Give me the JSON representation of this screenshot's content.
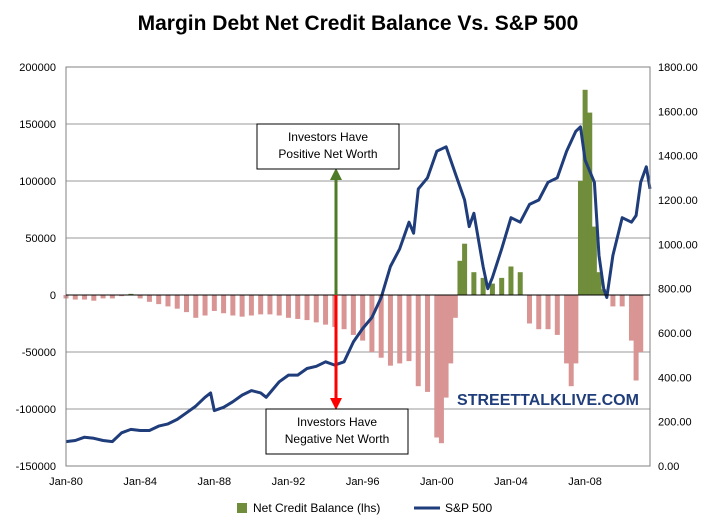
{
  "title": "Margin Debt Net Credit Balance Vs. S&P 500",
  "watermark": "STREETTALKLIVE.COM",
  "annotations": {
    "positive": [
      "Investors Have",
      "Positive Net Worth"
    ],
    "negative": [
      "Investors Have",
      "Negative Net Worth"
    ]
  },
  "colors": {
    "bars_positive": "#6f8d3a",
    "bars_negative": "#d99594",
    "sp500_line": "#1f3d7a",
    "arrow_up": "#4f7a28",
    "arrow_down": "#ff0000",
    "grid": "#999999"
  },
  "chart_data": {
    "type": "bar",
    "title": "Margin Debt Net Credit Balance Vs. S&P 500",
    "x_tick_labels": [
      "Jan-80",
      "Jan-84",
      "Jan-88",
      "Jan-92",
      "Jan-96",
      "Jan-00",
      "Jan-04",
      "Jan-08"
    ],
    "x_range": [
      1980.0,
      2011.5
    ],
    "y_left": {
      "label": "",
      "ticks": [
        "200000",
        "150000",
        "100000",
        "50000",
        "0",
        "-50000",
        "-100000",
        "-150000"
      ],
      "lim": [
        -150000,
        200000
      ]
    },
    "y_right": {
      "label": "",
      "ticks": [
        "1800.00",
        "1600.00",
        "1400.00",
        "1200.00",
        "1000.00",
        "800.00",
        "600.00",
        "400.00",
        "200.00",
        "0.00"
      ],
      "lim": [
        0,
        1800
      ]
    },
    "grid": true,
    "legend": {
      "placement": "bottom",
      "entries": [
        "Net Credit Balance (lhs)",
        "S&P 500"
      ]
    },
    "series": [
      {
        "name": "Net Credit Balance (lhs)",
        "kind": "bar",
        "axis": "left",
        "x": [
          1980.0,
          1980.5,
          1981.0,
          1981.5,
          1982.0,
          1982.5,
          1983.0,
          1983.5,
          1984.0,
          1984.5,
          1985.0,
          1985.5,
          1986.0,
          1986.5,
          1987.0,
          1987.5,
          1988.0,
          1988.5,
          1989.0,
          1989.5,
          1990.0,
          1990.5,
          1991.0,
          1991.5,
          1992.0,
          1992.5,
          1993.0,
          1993.5,
          1994.0,
          1994.5,
          1995.0,
          1995.5,
          1996.0,
          1996.5,
          1997.0,
          1997.5,
          1998.0,
          1998.5,
          1999.0,
          1999.5,
          2000.0,
          2000.25,
          2000.5,
          2000.75,
          2001.0,
          2001.25,
          2001.5,
          2002.0,
          2002.5,
          2003.0,
          2003.5,
          2004.0,
          2004.5,
          2005.0,
          2005.5,
          2006.0,
          2006.5,
          2007.0,
          2007.25,
          2007.5,
          2007.75,
          2008.0,
          2008.25,
          2008.5,
          2008.75,
          2009.0,
          2009.5,
          2010.0,
          2010.5,
          2010.75,
          2011.0
        ],
        "values": [
          -3000,
          -4000,
          -4000,
          -5000,
          -3000,
          -3000,
          -1000,
          1000,
          -3000,
          -6000,
          -8000,
          -10000,
          -12000,
          -15000,
          -20000,
          -18000,
          -14000,
          -16000,
          -18000,
          -19000,
          -18000,
          -17000,
          -17000,
          -18000,
          -20000,
          -21000,
          -22000,
          -24000,
          -26000,
          -28000,
          -30000,
          -35000,
          -40000,
          -50000,
          -55000,
          -62000,
          -60000,
          -58000,
          -80000,
          -85000,
          -125000,
          -130000,
          -90000,
          -60000,
          -20000,
          30000,
          45000,
          20000,
          15000,
          10000,
          15000,
          25000,
          20000,
          -25000,
          -30000,
          -30000,
          -35000,
          -60000,
          -80000,
          -60000,
          100000,
          180000,
          160000,
          60000,
          20000,
          5000,
          -10000,
          -10000,
          -40000,
          -75000,
          -50000
        ]
      },
      {
        "name": "S&P 500",
        "kind": "line",
        "axis": "right",
        "x": [
          1980.0,
          1980.5,
          1981.0,
          1981.5,
          1982.0,
          1982.5,
          1983.0,
          1983.5,
          1984.0,
          1984.5,
          1985.0,
          1985.5,
          1986.0,
          1986.5,
          1987.0,
          1987.5,
          1987.8,
          1988.0,
          1988.5,
          1989.0,
          1989.5,
          1990.0,
          1990.5,
          1990.8,
          1991.0,
          1991.5,
          1992.0,
          1992.5,
          1993.0,
          1993.5,
          1994.0,
          1994.5,
          1995.0,
          1995.5,
          1996.0,
          1996.5,
          1997.0,
          1997.5,
          1998.0,
          1998.5,
          1998.75,
          1999.0,
          1999.5,
          2000.0,
          2000.5,
          2000.75,
          2001.0,
          2001.5,
          2001.75,
          2002.0,
          2002.5,
          2002.75,
          2003.0,
          2003.5,
          2004.0,
          2004.5,
          2005.0,
          2005.5,
          2006.0,
          2006.5,
          2007.0,
          2007.5,
          2007.75,
          2008.0,
          2008.5,
          2008.75,
          2009.0,
          2009.17,
          2009.5,
          2010.0,
          2010.5,
          2010.75,
          2011.0,
          2011.3,
          2011.5
        ],
        "values": [
          110,
          115,
          130,
          125,
          115,
          110,
          150,
          165,
          160,
          160,
          180,
          190,
          210,
          240,
          270,
          310,
          330,
          250,
          265,
          290,
          320,
          340,
          330,
          310,
          330,
          380,
          410,
          410,
          440,
          450,
          470,
          455,
          470,
          560,
          620,
          670,
          760,
          900,
          980,
          1100,
          1050,
          1250,
          1300,
          1420,
          1440,
          1380,
          1320,
          1200,
          1080,
          1140,
          900,
          800,
          850,
          980,
          1120,
          1100,
          1180,
          1200,
          1280,
          1300,
          1420,
          1510,
          1530,
          1380,
          1280,
          950,
          800,
          760,
          950,
          1120,
          1100,
          1130,
          1280,
          1350,
          1250
        ]
      }
    ]
  }
}
